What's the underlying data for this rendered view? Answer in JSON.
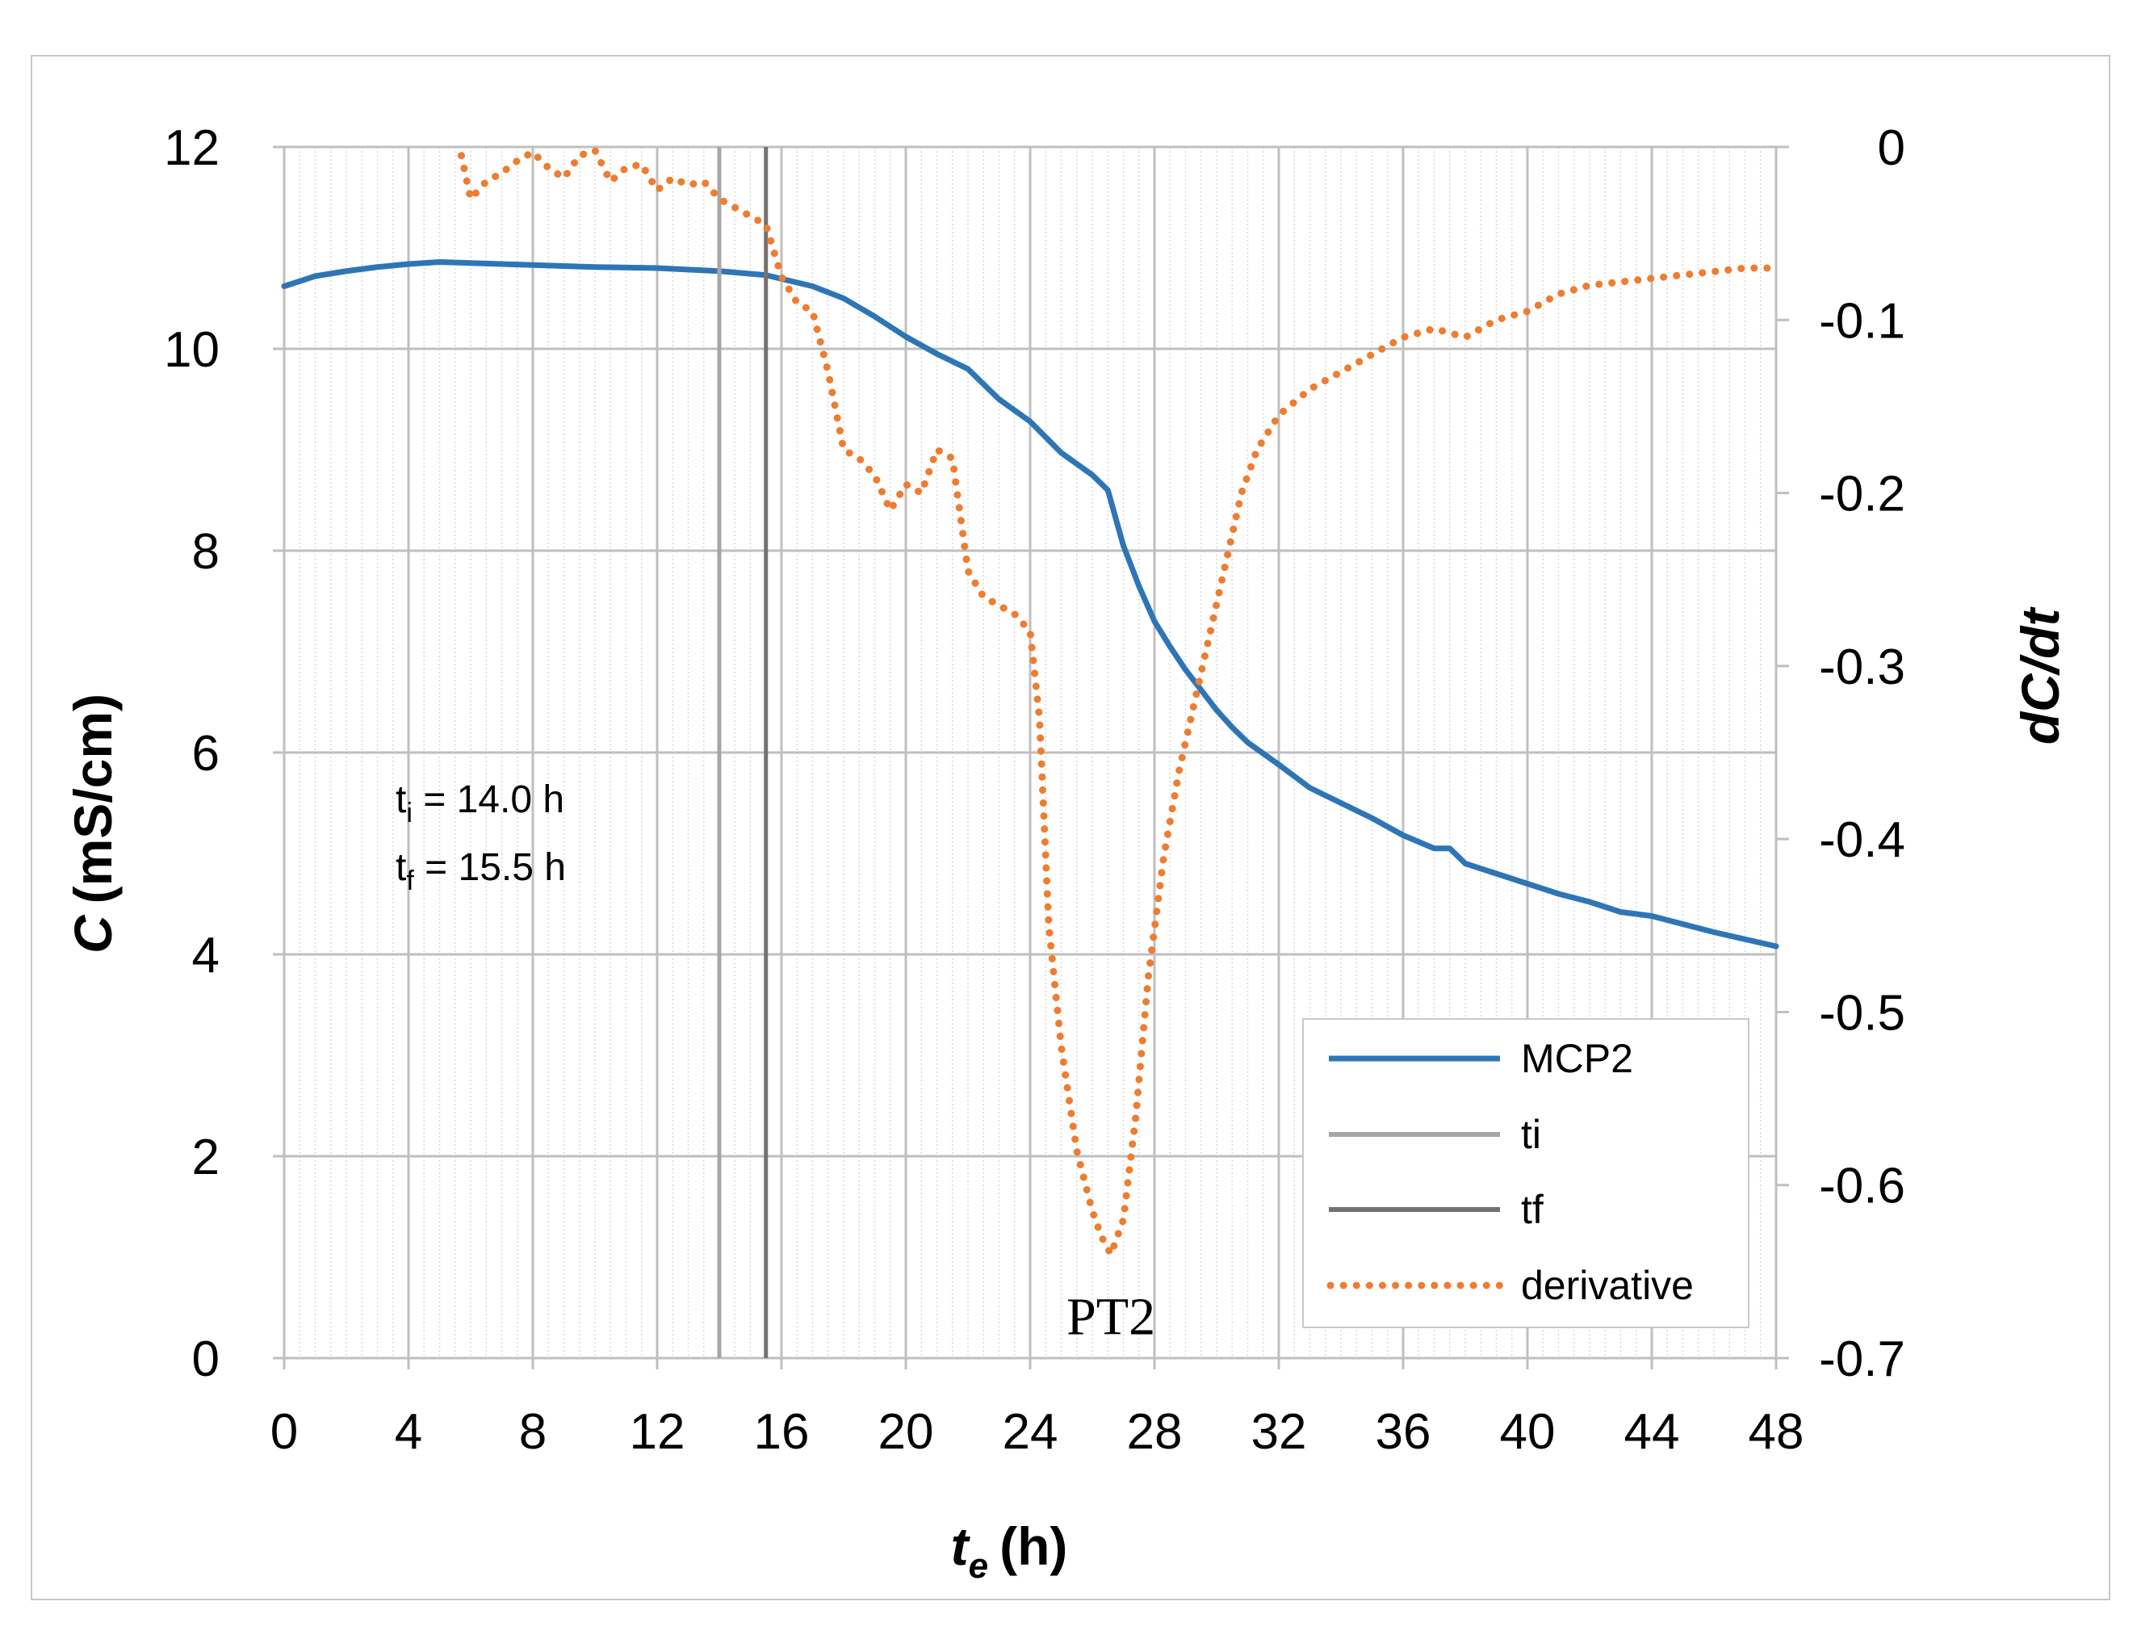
{
  "chart_data": {
    "type": "line",
    "title": "",
    "xlabel": "t",
    "xlabel_subscript": "e",
    "xlabel_unit": "(h)",
    "ylabel": "C (mS/cm)",
    "ylabel_italic": "C",
    "ylabel_unit": "(mS/cm)",
    "y2label": "dC/dt",
    "xlim": [
      0,
      48
    ],
    "ylim": [
      0,
      12
    ],
    "y2lim": [
      -0.7,
      0
    ],
    "x_ticks": [
      0,
      4,
      8,
      12,
      16,
      20,
      24,
      28,
      32,
      36,
      40,
      44,
      48
    ],
    "y_ticks": [
      0,
      2,
      4,
      6,
      8,
      10,
      12
    ],
    "y2_ticks": [
      "-0.7",
      "-0.6",
      "-0.5",
      "-0.4",
      "-0.3",
      "-0.2",
      "-0.1",
      "0"
    ],
    "grid": true,
    "legend_position": "bottom-right",
    "series": [
      {
        "name": "MCP2",
        "axis": "left",
        "color": "#2e75b6",
        "style": "solid",
        "x": [
          0,
          1,
          2,
          3,
          4,
          5,
          6,
          8,
          10,
          12,
          14,
          15.5,
          17,
          18,
          19,
          20,
          21,
          22,
          23,
          24,
          25,
          26,
          26.5,
          27,
          27.5,
          28,
          28.5,
          29,
          29.5,
          30,
          30.5,
          31,
          32,
          33,
          34,
          35,
          36,
          37,
          37.5,
          38,
          39,
          40,
          41,
          42,
          43,
          44,
          45,
          46,
          47,
          48
        ],
        "values": [
          10.62,
          10.72,
          10.77,
          10.81,
          10.84,
          10.86,
          10.85,
          10.83,
          10.81,
          10.8,
          10.77,
          10.73,
          10.62,
          10.5,
          10.32,
          10.12,
          9.95,
          9.8,
          9.5,
          9.28,
          8.97,
          8.75,
          8.6,
          8.05,
          7.65,
          7.3,
          7.05,
          6.82,
          6.62,
          6.42,
          6.25,
          6.1,
          5.88,
          5.65,
          5.5,
          5.35,
          5.18,
          5.05,
          5.05,
          4.9,
          4.8,
          4.7,
          4.6,
          4.52,
          4.42,
          4.38,
          4.3,
          4.22,
          4.15,
          4.08
        ]
      },
      {
        "name": "ti",
        "axis": "left",
        "color": "#a6a6a6",
        "style": "vertical",
        "x": [
          14.0,
          14.0
        ],
        "values": [
          0,
          12
        ]
      },
      {
        "name": "tf",
        "axis": "left",
        "color": "#767171",
        "style": "vertical",
        "x": [
          15.5,
          15.5
        ],
        "values": [
          0,
          12
        ]
      },
      {
        "name": "derivative",
        "axis": "right",
        "color": "#ed7d31",
        "style": "dotted",
        "x": [
          5.7,
          6.0,
          6.5,
          7.0,
          7.5,
          8.0,
          8.5,
          9.0,
          9.5,
          10.0,
          10.5,
          11.0,
          11.5,
          12.0,
          12.5,
          13.0,
          13.5,
          14.0,
          14.5,
          15.0,
          15.5,
          16.0,
          16.5,
          17.0,
          17.5,
          18.0,
          18.5,
          19.0,
          19.5,
          20.0,
          20.5,
          21.0,
          21.5,
          22.0,
          22.5,
          23.0,
          23.5,
          24.0,
          24.3,
          24.6,
          25.0,
          25.5,
          26.0,
          26.3,
          26.6,
          27.0,
          27.4,
          27.8,
          28.3,
          28.8,
          29.3,
          29.8,
          30.3,
          30.8,
          31.3,
          32.0,
          33.0,
          34.0,
          35.0,
          36.0,
          37.0,
          38.0,
          39.0,
          40.0,
          41.0,
          42.0,
          43.0,
          44.0,
          45.0,
          46.0,
          47.0,
          48.0
        ],
        "values": [
          -0.005,
          -0.03,
          -0.02,
          -0.015,
          -0.008,
          -0.003,
          -0.012,
          -0.018,
          -0.005,
          -0.002,
          -0.02,
          -0.012,
          -0.01,
          -0.025,
          -0.018,
          -0.022,
          -0.02,
          -0.03,
          -0.035,
          -0.04,
          -0.045,
          -0.075,
          -0.09,
          -0.095,
          -0.13,
          -0.175,
          -0.18,
          -0.19,
          -0.21,
          -0.195,
          -0.2,
          -0.175,
          -0.18,
          -0.245,
          -0.26,
          -0.265,
          -0.27,
          -0.28,
          -0.33,
          -0.45,
          -0.52,
          -0.58,
          -0.615,
          -0.63,
          -0.64,
          -0.62,
          -0.56,
          -0.48,
          -0.41,
          -0.36,
          -0.32,
          -0.28,
          -0.24,
          -0.2,
          -0.175,
          -0.155,
          -0.14,
          -0.13,
          -0.12,
          -0.11,
          -0.105,
          -0.11,
          -0.1,
          -0.095,
          -0.085,
          -0.08,
          -0.078,
          -0.076,
          -0.074,
          -0.072,
          -0.07,
          -0.07
        ]
      }
    ],
    "annotations": [
      {
        "id": "ti_note",
        "main": "t",
        "sub": "i",
        "rest": " = 14.0 h"
      },
      {
        "id": "tf_note",
        "main": "t",
        "sub": "f",
        "rest": " = 15.5 h"
      },
      {
        "id": "pt_label",
        "text": "PT2",
        "x": 26.6,
        "y2": -0.66
      }
    ]
  }
}
